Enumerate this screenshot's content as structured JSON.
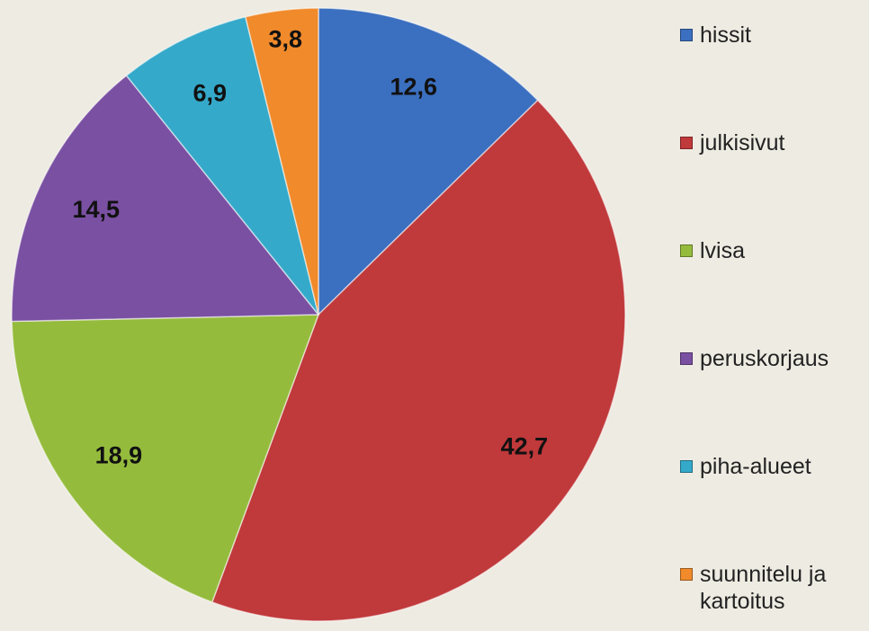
{
  "chart_data": {
    "type": "pie",
    "categories": [
      "hissit",
      "julkisivut",
      "lvisa",
      "peruskorjaus",
      "piha-alueet",
      "suunnitelu ja kartoitus"
    ],
    "values": [
      12.6,
      42.7,
      18.9,
      14.5,
      6.9,
      3.8
    ],
    "value_labels": [
      "12,6",
      "42,7",
      "18,9",
      "14,5",
      "6,9",
      "3,8"
    ],
    "colors": [
      "#3b6fbf",
      "#c0393b",
      "#95bb3d",
      "#7a50a2",
      "#35a9c9",
      "#f08a2b"
    ],
    "legend": "right"
  }
}
